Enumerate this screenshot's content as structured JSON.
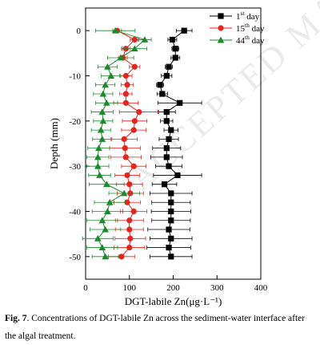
{
  "chart_data": {
    "type": "scatter",
    "ylabel": "Depth (mm)",
    "xlabel": "DGT-labile Zn(μg·L⁻¹)",
    "xlim": [
      0,
      400
    ],
    "ylim": [
      -55,
      5
    ],
    "xticks": [
      "0",
      "100",
      "200",
      "300",
      "400"
    ],
    "yticks": [
      "0",
      "-10",
      "-20",
      "-30",
      "-40",
      "-50"
    ],
    "legend_position": "top-right",
    "series": [
      {
        "name": "1st day",
        "label_base": "1",
        "label_sup": "st",
        "label_rest": " day",
        "marker": "square",
        "color": "#000000",
        "depths": [
          0,
          -2,
          -4,
          -6,
          -8,
          -10,
          -12,
          -14,
          -16,
          -18,
          -20,
          -22,
          -24,
          -26,
          -28,
          -30,
          -32,
          -34,
          -36,
          -38,
          -40,
          -42,
          -44,
          -46,
          -48,
          -50
        ],
        "values": [
          225,
          198,
          205,
          205,
          190,
          185,
          170,
          175,
          215,
          185,
          185,
          195,
          190,
          185,
          185,
          190,
          210,
          180,
          195,
          195,
          195,
          195,
          190,
          195,
          190,
          195
        ],
        "errors": [
          18,
          10,
          8,
          10,
          8,
          12,
          8,
          12,
          50,
          20,
          14,
          16,
          22,
          32,
          36,
          30,
          55,
          28,
          48,
          44,
          45,
          44,
          48,
          48,
          50,
          48
        ]
      },
      {
        "name": "15th day",
        "label_base": "15",
        "label_sup": "th",
        "label_rest": " day",
        "marker": "circle",
        "color": "#e8231b",
        "depths": [
          0,
          -2,
          -4,
          -6,
          -8,
          -10,
          -12,
          -14,
          -16,
          -18,
          -20,
          -22,
          -24,
          -26,
          -28,
          -30,
          -32,
          -34,
          -36,
          -38,
          -40,
          -42,
          -44,
          -46,
          -48,
          -50
        ],
        "values": [
          72,
          112,
          92,
          85,
          112,
          92,
          95,
          92,
          92,
          122,
          112,
          110,
          88,
          90,
          92,
          110,
          95,
          100,
          102,
          95,
          110,
          100,
          100,
          102,
          100,
          82
        ],
        "errors": [
          10,
          10,
          10,
          10,
          12,
          14,
          14,
          14,
          28,
          45,
          28,
          28,
          30,
          35,
          35,
          28,
          28,
          30,
          30,
          30,
          30,
          32,
          32,
          35,
          35,
          30
        ]
      },
      {
        "name": "44th day",
        "label_base": "44",
        "label_sup": "th",
        "label_rest": " day",
        "marker": "triangle",
        "color": "#1b8a2e",
        "depths": [
          0,
          -2,
          -4,
          -6,
          -8,
          -10,
          -12,
          -14,
          -16,
          -18,
          -20,
          -22,
          -24,
          -26,
          -28,
          -30,
          -32,
          -34,
          -36,
          -38,
          -40,
          -42,
          -44,
          -46,
          -48,
          -50
        ],
        "values": [
          68,
          135,
          112,
          80,
          50,
          58,
          45,
          40,
          48,
          38,
          40,
          35,
          38,
          30,
          28,
          28,
          32,
          48,
          88,
          55,
          50,
          38,
          45,
          28,
          38,
          45
        ],
        "errors": [
          45,
          15,
          28,
          30,
          22,
          22,
          22,
          22,
          25,
          25,
          22,
          22,
          22,
          25,
          25,
          25,
          25,
          40,
          35,
          35,
          35,
          35,
          35,
          35,
          35,
          30
        ]
      }
    ]
  },
  "caption": {
    "fig_label": "Fig. 7",
    "text": ". Concentrations of DGT-labile Zn across the sediment-water interface after the algal treatment."
  },
  "watermark": "ACCEPTED MANUSCRIPT"
}
